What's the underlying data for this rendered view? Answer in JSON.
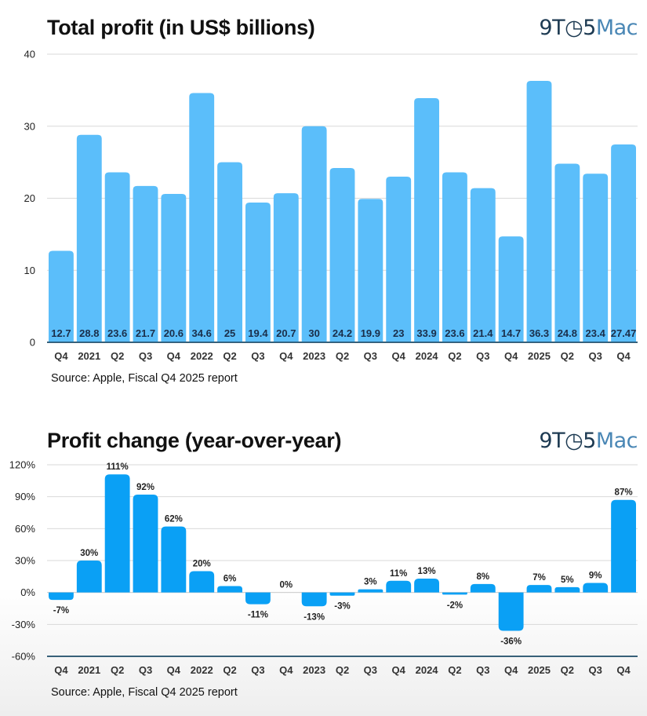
{
  "brand": {
    "logo_num": "9T",
    "logo_clock": "◷",
    "logo_five": "5",
    "logo_mac": "Mac"
  },
  "chart_data": [
    {
      "type": "bar",
      "title": "Total profit (in US$ billions)",
      "xlabel": "",
      "ylabel": "",
      "categories": [
        "Q4",
        "2021",
        "Q2",
        "Q3",
        "Q4",
        "2022",
        "Q2",
        "Q3",
        "Q4",
        "2023",
        "Q2",
        "Q3",
        "Q4",
        "2024",
        "Q2",
        "Q3",
        "Q4",
        "2025",
        "Q2",
        "Q3",
        "Q4"
      ],
      "values": [
        12.7,
        28.8,
        23.6,
        21.7,
        20.6,
        34.6,
        25,
        19.4,
        20.7,
        30,
        24.2,
        19.9,
        23,
        33.9,
        23.6,
        21.4,
        14.7,
        36.3,
        24.8,
        23.4,
        27.47
      ],
      "value_labels": [
        "12.7",
        "28.8",
        "23.6",
        "21.7",
        "20.6",
        "34.6",
        "25",
        "19.4",
        "20.7",
        "30",
        "24.2",
        "19.9",
        "23",
        "33.9",
        "23.6",
        "21.4",
        "14.7",
        "36.3",
        "24.8",
        "23.4",
        "27.47"
      ],
      "ylim": [
        0,
        40
      ],
      "yticks": [
        0,
        10,
        20,
        30,
        40
      ],
      "ytick_labels": [
        "0",
        "10",
        "20",
        "30",
        "40"
      ],
      "grid": true,
      "legend": "none",
      "bar_color": "#5bbefa",
      "source": "Source: Apple, Fiscal Q4 2025 report"
    },
    {
      "type": "bar",
      "title": "Profit change (year-over-year)",
      "xlabel": "",
      "ylabel": "",
      "categories": [
        "Q4",
        "2021",
        "Q2",
        "Q3",
        "Q4",
        "2022",
        "Q2",
        "Q3",
        "Q4",
        "2023",
        "Q2",
        "Q3",
        "Q4",
        "2024",
        "Q2",
        "Q3",
        "Q4",
        "2025",
        "Q2",
        "Q3",
        "Q4"
      ],
      "values": [
        -7,
        30,
        111,
        92,
        62,
        20,
        6,
        -11,
        0,
        -13,
        -3,
        3,
        11,
        13,
        -2,
        8,
        -36,
        7,
        5,
        9,
        87
      ],
      "value_labels": [
        "-7%",
        "30%",
        "111%",
        "92%",
        "62%",
        "20%",
        "6%",
        "-11%",
        "0%",
        "-13%",
        "-3%",
        "3%",
        "11%",
        "13%",
        "-2%",
        "8%",
        "-36%",
        "7%",
        "5%",
        "9%",
        "87%"
      ],
      "ylim": [
        -60,
        120
      ],
      "yticks": [
        -60,
        -30,
        0,
        30,
        60,
        90,
        120
      ],
      "ytick_labels": [
        "-60%",
        "-30%",
        "0%",
        "30%",
        "60%",
        "90%",
        "120%"
      ],
      "grid": true,
      "legend": "none",
      "bar_color": "#0aa0f5",
      "source": "Source: Apple, Fiscal Q4 2025 report"
    }
  ]
}
